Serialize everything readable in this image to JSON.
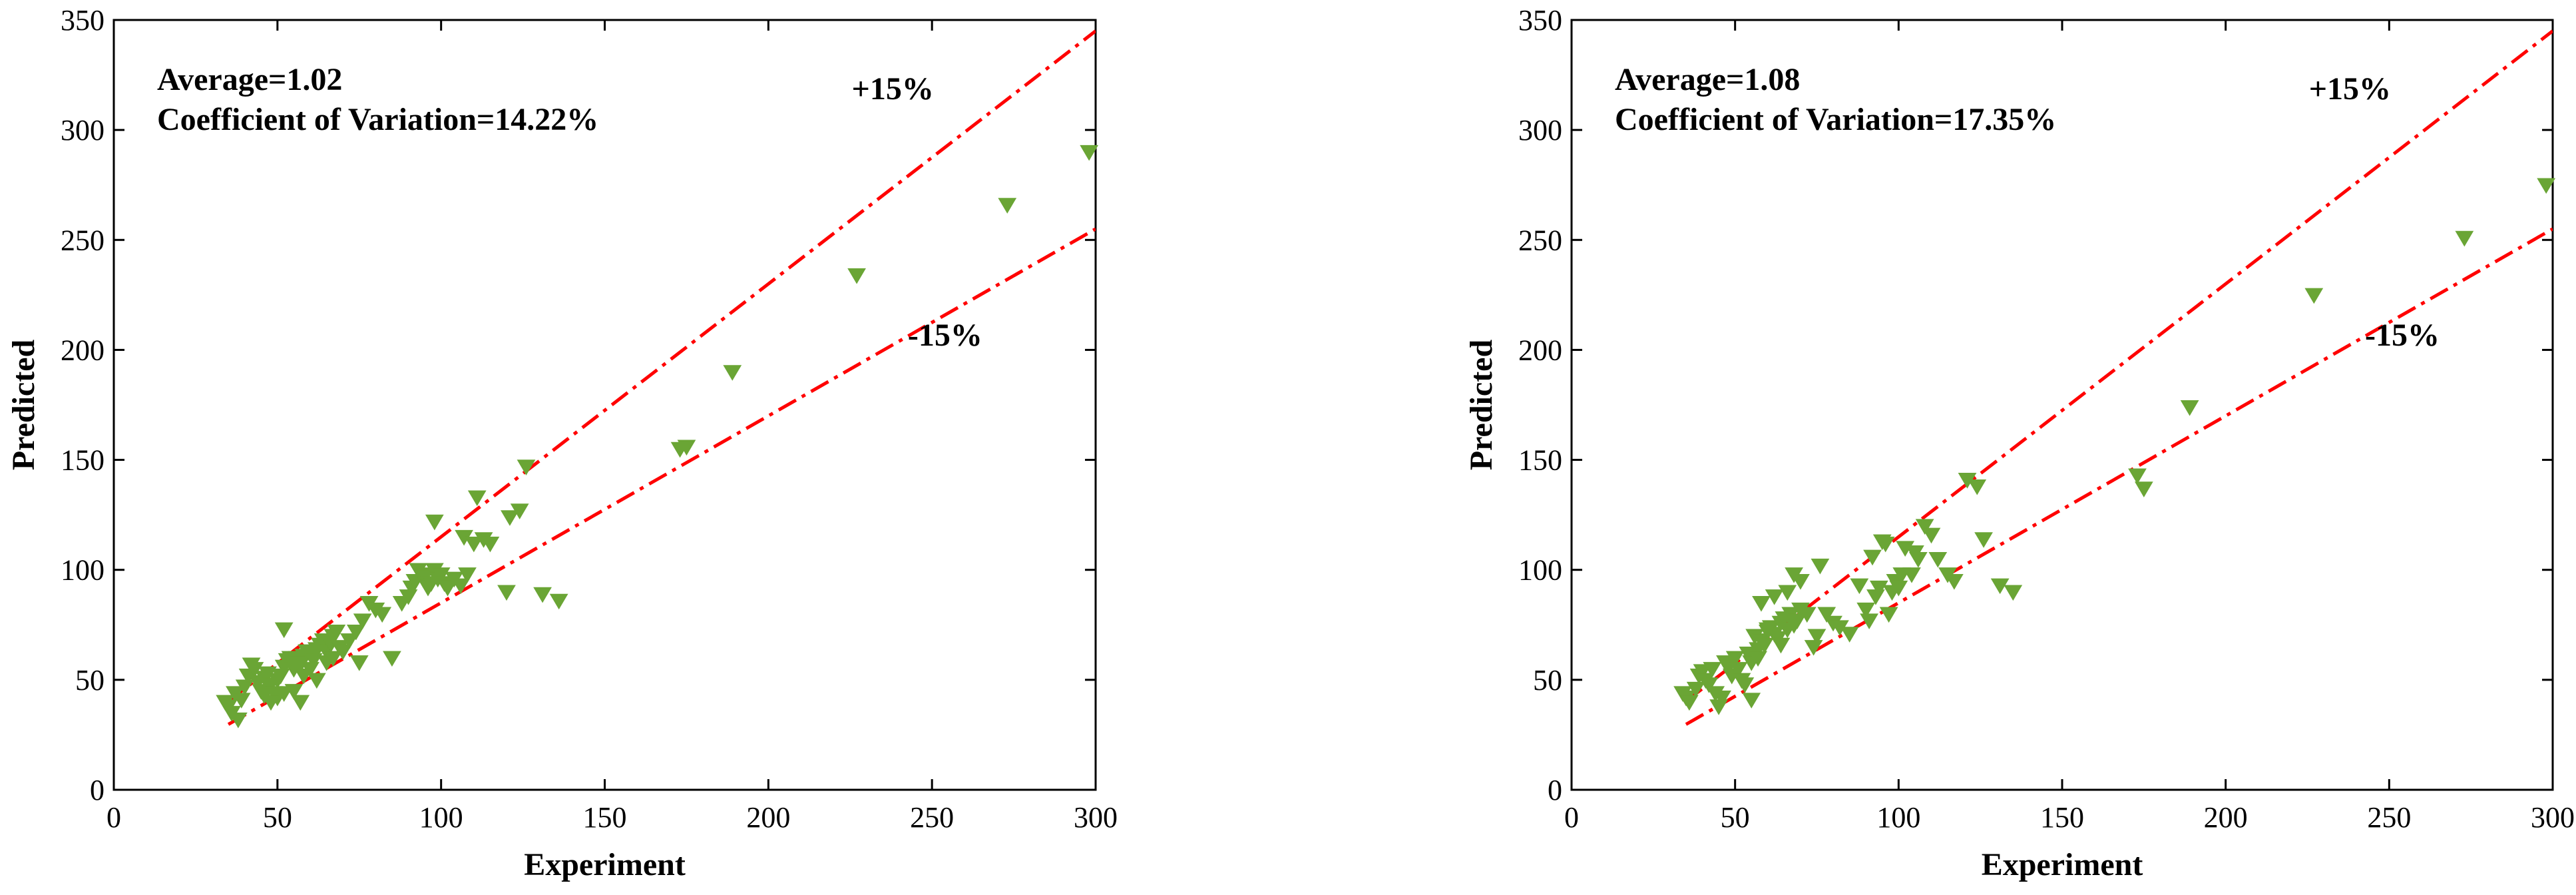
{
  "chart_data": [
    {
      "type": "scatter",
      "title": "",
      "xlabel": "Experiment",
      "ylabel": "Predicted",
      "xlim": [
        0,
        300
      ],
      "ylim": [
        0,
        350
      ],
      "xticks": [
        "0",
        "50",
        "100",
        "150",
        "200",
        "250",
        "300"
      ],
      "yticks": [
        "0",
        "50",
        "100",
        "150",
        "200",
        "250",
        "300",
        "350"
      ],
      "xtick_values": [
        0,
        50,
        100,
        150,
        200,
        250,
        300
      ],
      "ytick_values": [
        0,
        50,
        100,
        150,
        200,
        250,
        300,
        350
      ],
      "stats": {
        "average": "Average=1.02",
        "cov": "Coefficient of Variation=14.22%"
      },
      "bands": [
        {
          "name": "+15%",
          "factor": 1.15,
          "label": "+15%",
          "label_at": [
            238,
            314
          ]
        },
        {
          "name": "-15%",
          "factor": 0.85,
          "label": "-15%",
          "label_at": [
            254,
            202
          ]
        }
      ],
      "band_x_range": [
        35,
        300
      ],
      "marker_color": "#6aa535",
      "line_color": "#ff0000",
      "points": [
        [
          34,
          40
        ],
        [
          35,
          38
        ],
        [
          36,
          35
        ],
        [
          38,
          32
        ],
        [
          37,
          44
        ],
        [
          39,
          41
        ],
        [
          40,
          47
        ],
        [
          41,
          52
        ],
        [
          42,
          57
        ],
        [
          43,
          55
        ],
        [
          44,
          49
        ],
        [
          45,
          45
        ],
        [
          46,
          51
        ],
        [
          47,
          53
        ],
        [
          48,
          48
        ],
        [
          49,
          44
        ],
        [
          50,
          50
        ],
        [
          51,
          52
        ],
        [
          52,
          56
        ],
        [
          53,
          59
        ],
        [
          54,
          58
        ],
        [
          55,
          55
        ],
        [
          56,
          60
        ],
        [
          57,
          57
        ],
        [
          58,
          61
        ],
        [
          59,
          63
        ],
        [
          60,
          62
        ],
        [
          61,
          59
        ],
        [
          62,
          64
        ],
        [
          63,
          66
        ],
        [
          64,
          68
        ],
        [
          65,
          63
        ],
        [
          66,
          67
        ],
        [
          67,
          70
        ],
        [
          68,
          72
        ],
        [
          69,
          65
        ],
        [
          60,
          55
        ],
        [
          62,
          50
        ],
        [
          58,
          52
        ],
        [
          55,
          45
        ],
        [
          57,
          40
        ],
        [
          52,
          44
        ],
        [
          50,
          42
        ],
        [
          48,
          40
        ],
        [
          46,
          43
        ],
        [
          52,
          73
        ],
        [
          54,
          60
        ],
        [
          56,
          58
        ],
        [
          65,
          58
        ],
        [
          67,
          60
        ],
        [
          70,
          63
        ],
        [
          72,
          68
        ],
        [
          74,
          72
        ],
        [
          75,
          58
        ],
        [
          76,
          77
        ],
        [
          78,
          85
        ],
        [
          80,
          82
        ],
        [
          82,
          80
        ],
        [
          85,
          60
        ],
        [
          88,
          85
        ],
        [
          90,
          88
        ],
        [
          91,
          92
        ],
        [
          92,
          95
        ],
        [
          93,
          100
        ],
        [
          94,
          98
        ],
        [
          95,
          97
        ],
        [
          96,
          92
        ],
        [
          97,
          94
        ],
        [
          98,
          100
        ],
        [
          99,
          96
        ],
        [
          100,
          98
        ],
        [
          101,
          94
        ],
        [
          102,
          92
        ],
        [
          104,
          96
        ],
        [
          106,
          93
        ],
        [
          107,
          115
        ],
        [
          108,
          98
        ],
        [
          110,
          112
        ],
        [
          111,
          133
        ],
        [
          113,
          114
        ],
        [
          115,
          112
        ],
        [
          98,
          122
        ],
        [
          120,
          90
        ],
        [
          121,
          124
        ],
        [
          124,
          127
        ],
        [
          126,
          147
        ],
        [
          131,
          89
        ],
        [
          136,
          86
        ],
        [
          173,
          155
        ],
        [
          175,
          156
        ],
        [
          189,
          190
        ],
        [
          227,
          234
        ],
        [
          273,
          266
        ],
        [
          298,
          290
        ]
      ]
    },
    {
      "type": "scatter",
      "title": "",
      "xlabel": "Experiment",
      "ylabel": "Predicted",
      "xlim": [
        0,
        300
      ],
      "ylim": [
        0,
        350
      ],
      "xticks": [
        "0",
        "50",
        "100",
        "150",
        "200",
        "250",
        "300"
      ],
      "yticks": [
        "0",
        "50",
        "100",
        "150",
        "200",
        "250",
        "300",
        "350"
      ],
      "xtick_values": [
        0,
        50,
        100,
        150,
        200,
        250,
        300
      ],
      "ytick_values": [
        0,
        50,
        100,
        150,
        200,
        250,
        300,
        350
      ],
      "stats": {
        "average": "Average=1.08",
        "cov": "Coefficient of Variation=17.35%"
      },
      "bands": [
        {
          "name": "+15%",
          "factor": 1.15,
          "label": "+15%",
          "label_at": [
            238,
            314
          ]
        },
        {
          "name": "-15%",
          "factor": 0.85,
          "label": "-15%",
          "label_at": [
            254,
            202
          ]
        }
      ],
      "band_x_range": [
        35,
        300
      ],
      "marker_color": "#6aa535",
      "line_color": "#ff0000",
      "points": [
        [
          34,
          44
        ],
        [
          35,
          42
        ],
        [
          36,
          40
        ],
        [
          38,
          46
        ],
        [
          39,
          52
        ],
        [
          40,
          54
        ],
        [
          41,
          50
        ],
        [
          42,
          48
        ],
        [
          43,
          55
        ],
        [
          44,
          44
        ],
        [
          45,
          38
        ],
        [
          46,
          42
        ],
        [
          47,
          58
        ],
        [
          48,
          56
        ],
        [
          49,
          52
        ],
        [
          50,
          60
        ],
        [
          51,
          55
        ],
        [
          52,
          50
        ],
        [
          53,
          48
        ],
        [
          54,
          62
        ],
        [
          55,
          58
        ],
        [
          56,
          70
        ],
        [
          57,
          64
        ],
        [
          58,
          68
        ],
        [
          59,
          66
        ],
        [
          60,
          72
        ],
        [
          61,
          74
        ],
        [
          62,
          71
        ],
        [
          63,
          69
        ],
        [
          64,
          76
        ],
        [
          65,
          78
        ],
        [
          66,
          73
        ],
        [
          67,
          80
        ],
        [
          68,
          75
        ],
        [
          69,
          77
        ],
        [
          70,
          82
        ],
        [
          55,
          41
        ],
        [
          57,
          60
        ],
        [
          58,
          85
        ],
        [
          60,
          73
        ],
        [
          62,
          88
        ],
        [
          64,
          66
        ],
        [
          66,
          90
        ],
        [
          68,
          98
        ],
        [
          70,
          95
        ],
        [
          72,
          80
        ],
        [
          74,
          65
        ],
        [
          75,
          70
        ],
        [
          76,
          102
        ],
        [
          78,
          80
        ],
        [
          80,
          76
        ],
        [
          82,
          74
        ],
        [
          85,
          71
        ],
        [
          88,
          93
        ],
        [
          90,
          82
        ],
        [
          91,
          77
        ],
        [
          92,
          106
        ],
        [
          93,
          88
        ],
        [
          94,
          92
        ],
        [
          95,
          113
        ],
        [
          96,
          112
        ],
        [
          97,
          80
        ],
        [
          98,
          90
        ],
        [
          99,
          95
        ],
        [
          100,
          92
        ],
        [
          101,
          98
        ],
        [
          102,
          110
        ],
        [
          104,
          98
        ],
        [
          105,
          108
        ],
        [
          106,
          105
        ],
        [
          108,
          120
        ],
        [
          110,
          116
        ],
        [
          112,
          105
        ],
        [
          115,
          98
        ],
        [
          117,
          95
        ],
        [
          121,
          141
        ],
        [
          124,
          138
        ],
        [
          126,
          114
        ],
        [
          131,
          93
        ],
        [
          135,
          90
        ],
        [
          173,
          143
        ],
        [
          175,
          137
        ],
        [
          189,
          174
        ],
        [
          227,
          225
        ],
        [
          273,
          251
        ],
        [
          298,
          275
        ]
      ]
    }
  ]
}
